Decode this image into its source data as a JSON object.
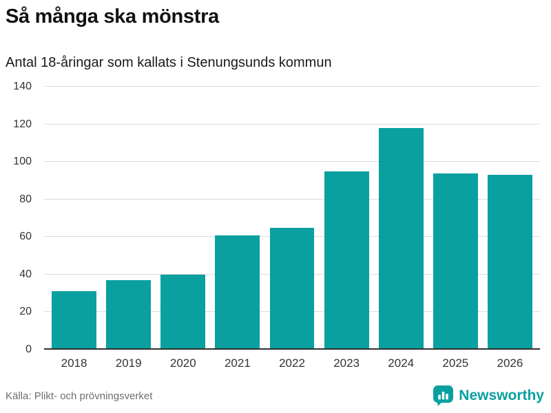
{
  "chart_data": {
    "type": "bar",
    "title": "Så många ska mönstra",
    "subtitle": "Antal 18-åringar som kallats i Stenungsunds kommun",
    "categories": [
      "2018",
      "2019",
      "2020",
      "2021",
      "2022",
      "2023",
      "2024",
      "2025",
      "2026"
    ],
    "values": [
      31,
      37,
      40,
      61,
      65,
      95,
      118,
      94,
      93
    ],
    "xlabel": "",
    "ylabel": "",
    "ylim": [
      0,
      140
    ],
    "yticks": [
      0,
      20,
      40,
      60,
      80,
      100,
      120,
      140
    ],
    "grid": true,
    "legend": false,
    "bar_color": "#0aa0a0"
  },
  "footer": {
    "source": "Källa: Plikt- och prövningsverket",
    "brand": "Newsworthy"
  },
  "colors": {
    "accent": "#0aa0a0",
    "grid": "#dcdcdc",
    "axis": "#2f2f2f",
    "text": "#333333",
    "title": "#111111",
    "muted": "#6e6e6e"
  }
}
